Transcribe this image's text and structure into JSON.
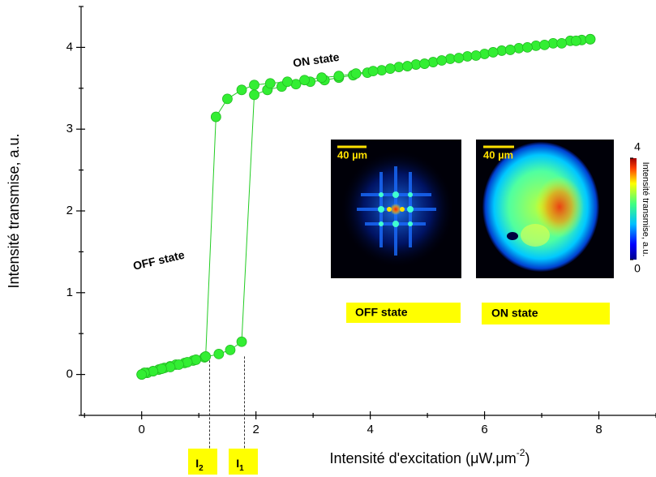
{
  "chart_data": {
    "type": "scatter",
    "xlabel": {
      "text": "Intensité d'excitation (μW.μm",
      "sup": "-2",
      "end": ")"
    },
    "ylabel": "Intensité transmise, a.u.",
    "xlim": [
      -1.06,
      9
    ],
    "xticks": [
      0,
      2,
      4,
      6,
      8
    ],
    "xminor": [
      -1,
      1,
      3,
      5,
      7,
      9
    ],
    "ylim": [
      -0.5,
      4.5
    ],
    "yticks": [
      0,
      1,
      2,
      3,
      4
    ],
    "yminor": [
      -0.5,
      0.5,
      1.5,
      2.5,
      3.5,
      4.5
    ],
    "color": "#33ee33",
    "line_color": "#22cc22",
    "series": [
      {
        "x": [
          0,
          0.1,
          0.2,
          0.3,
          0.4,
          0.5,
          0.6,
          0.75,
          0.9,
          1.1,
          1.35,
          1.55,
          1.75,
          1.97,
          2.2,
          2.45,
          2.7,
          2.95,
          3.2,
          3.45,
          3.7,
          3.95,
          4.2,
          4.5,
          4.8,
          5.1,
          5.4,
          5.7,
          6.0,
          6.3,
          6.6,
          6.9,
          7.2,
          7.5,
          7.7,
          7.85
        ],
        "values": [
          0,
          0.02,
          0.04,
          0.06,
          0.08,
          0.1,
          0.12,
          0.14,
          0.17,
          0.21,
          0.25,
          0.3,
          0.4,
          3.42,
          3.48,
          3.52,
          3.55,
          3.58,
          3.6,
          3.63,
          3.66,
          3.69,
          3.72,
          3.76,
          3.79,
          3.82,
          3.86,
          3.89,
          3.92,
          3.96,
          3.99,
          4.02,
          4.05,
          4.08,
          4.09,
          4.1
        ]
      },
      {
        "x": [
          7.85,
          7.6,
          7.35,
          7.05,
          6.75,
          6.45,
          6.15,
          5.85,
          5.55,
          5.25,
          4.95,
          4.65,
          4.35,
          4.05,
          3.75,
          3.45,
          3.15,
          2.85,
          2.55,
          2.25,
          1.97,
          1.75,
          1.5,
          1.3,
          1.12,
          0.95,
          0.8,
          0.65,
          0.5,
          0.35,
          0.2,
          0.05,
          0
        ],
        "values": [
          4.1,
          4.08,
          4.05,
          4.03,
          4.0,
          3.97,
          3.94,
          3.9,
          3.87,
          3.84,
          3.8,
          3.77,
          3.74,
          3.71,
          3.68,
          3.65,
          3.63,
          3.6,
          3.58,
          3.56,
          3.54,
          3.48,
          3.37,
          3.15,
          0.22,
          0.18,
          0.15,
          0.12,
          0.09,
          0.07,
          0.04,
          0.02,
          0
        ]
      }
    ],
    "annotations": [
      "ON state",
      "OFF state"
    ],
    "markers": [
      {
        "label": "I",
        "sub": "2",
        "x": 1.19
      },
      {
        "label": "I",
        "sub": "1",
        "x": 1.8
      }
    ],
    "insets": [
      {
        "scale": "40 µm",
        "caption": "OFF state"
      },
      {
        "scale": "40 µm",
        "caption": "ON state"
      }
    ],
    "colorbar": {
      "label": "Intensité transmise, a.u.",
      "clim": [
        0,
        4
      ],
      "ticks": [
        0,
        4
      ]
    }
  }
}
